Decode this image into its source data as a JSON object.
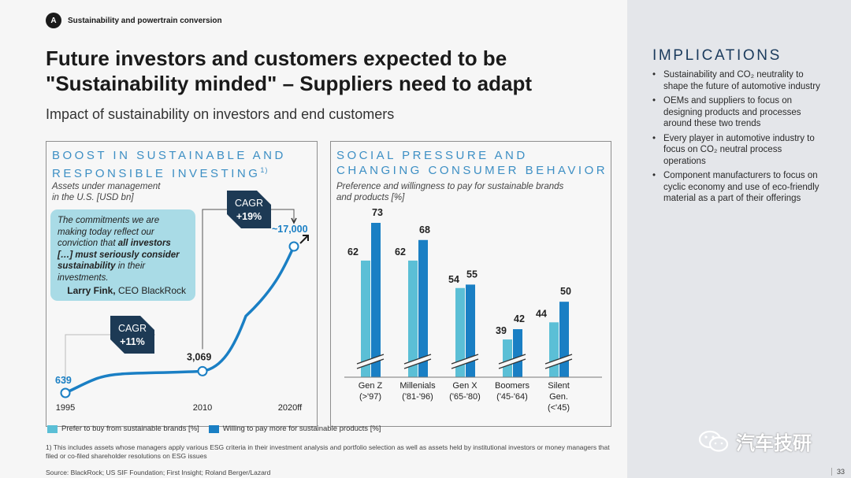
{
  "section": {
    "badge": "A",
    "label": "Sustainability and powertrain conversion"
  },
  "title": "Future investors and customers expected to be \"Sustainability minded\" – Suppliers need to adapt",
  "subtitle": "Impact of sustainability on investors and end customers",
  "left_panel": {
    "title_line1": "BOOST IN SUSTAINABLE AND",
    "title_line2": "RESPONSIBLE INVESTING",
    "title_sup": "1)",
    "sub_line1": "Assets under management",
    "sub_line2": "in the U.S. [USD bn]",
    "quote_parts": [
      "The commitments we are making today reflect our conviction that ",
      "all investors […] must seriously consider sustainability",
      " in their investments."
    ],
    "quote_author_bold": "Larry Fink,",
    "quote_author_rest": " CEO BlackRock",
    "cagr1": {
      "label": "CAGR",
      "value": "+11%"
    },
    "cagr2": {
      "label": "CAGR",
      "value": "+19%"
    }
  },
  "right_panel": {
    "title_line1": "SOCIAL PRESSURE AND",
    "title_line2": "CHANGING CONSUMER BEHAVIOR",
    "sub_line1": "Preference and willingness to pay for sustainable brands",
    "sub_line2": "and products [%]"
  },
  "legend": {
    "items": [
      {
        "label": "Prefer to buy from sustainable brands [%]",
        "color": "#5bbfd6"
      },
      {
        "label": "Willing to pay more for sustainable products [%]",
        "color": "#1a7fc4"
      }
    ]
  },
  "footnote": "1) This includes assets whose managers apply various ESG criteria in their investment analysis and portfolio selection as well as assets held by institutional investors or money managers that filed or co-filed shareholder resolutions on ESG issues",
  "source": "Source: BlackRock; US SIF Foundation; First Insight; Roland Berger/Lazard",
  "implications": {
    "title": "IMPLICATIONS",
    "items": [
      "Sustainability and CO₂ neutrality to shape the future of automotive industry",
      "OEMs and suppliers to focus on designing products and processes around these two trends",
      "Every player in automotive industry to focus on CO₂ neutral process operations",
      "Component manufacturers to focus on cyclic economy and use of eco-friendly material as a part of their offerings"
    ]
  },
  "watermark": "汽车技研",
  "page_number": "33",
  "chart_data": [
    {
      "type": "line",
      "title": "BOOST IN SUSTAINABLE AND RESPONSIBLE INVESTING",
      "ylabel": "Assets under management in the U.S. [USD bn]",
      "x_tick_labels": [
        "1995",
        "2010",
        "2020ff"
      ],
      "points": [
        {
          "x": 1995,
          "y": 639,
          "label": "639"
        },
        {
          "x": 2010,
          "y": 3069,
          "label": "3,069"
        },
        {
          "x": 2020,
          "y": 17000,
          "label": "~17,000"
        }
      ],
      "series_color": "#1a7fc4"
    },
    {
      "type": "bar",
      "title": "SOCIAL PRESSURE AND CHANGING CONSUMER BEHAVIOR",
      "ylabel": "Preference and willingness to pay for sustainable brands and products [%]",
      "categories": [
        {
          "line1": "Gen Z",
          "line2": "(>'97)",
          "line3": ""
        },
        {
          "line1": "Millenials",
          "line2": "('81-'96)",
          "line3": ""
        },
        {
          "line1": "Gen X",
          "line2": "('65-'80)",
          "line3": ""
        },
        {
          "line1": "Boomers",
          "line2": "('45-'64)",
          "line3": ""
        },
        {
          "line1": "Silent",
          "line2": "Gen.",
          "line3": "(<'45)"
        }
      ],
      "series": [
        {
          "name": "Prefer to buy from sustainable brands [%]",
          "color": "#5bbfd6",
          "values": [
            62,
            62,
            54,
            39,
            44
          ]
        },
        {
          "name": "Willing to pay more for sustainable products [%]",
          "color": "#1a7fc4",
          "values": [
            73,
            68,
            55,
            42,
            50
          ]
        }
      ],
      "axis_break": true
    }
  ]
}
